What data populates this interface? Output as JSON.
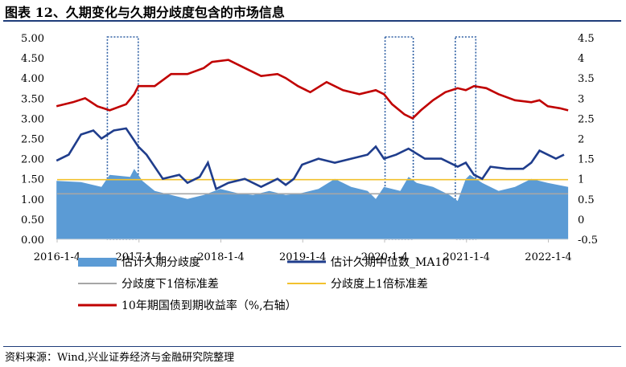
{
  "title": "图表 12、久期变化与久期分歧度包含的市场信息",
  "source": "资料来源：Wind,兴业证券经济与金融研究院整理",
  "colors": {
    "area": "#5b9bd5",
    "median": "#1f3d8c",
    "lower": "#a6a6a6",
    "upper": "#f2c12e",
    "yield": "#c00000",
    "highlight": "#2e5fa3"
  },
  "chart_data": {
    "type": "area+line",
    "x_range": [
      "2016-01-04",
      "2022-03-31"
    ],
    "x_ticks": [
      "2016-1-4",
      "2017-1-4",
      "2018-1-4",
      "2019-1-4",
      "2020-1-4",
      "2021-1-4",
      "2022-1-4"
    ],
    "y_left": {
      "min": 0,
      "max": 5,
      "ticks": [
        "0.00",
        "0.50",
        "1.00",
        "1.50",
        "2.00",
        "2.50",
        "3.00",
        "3.50",
        "4.00",
        "4.50",
        "5.00"
      ]
    },
    "y_right": {
      "min": -0.5,
      "max": 4.5,
      "ticks": [
        "-0.5",
        "0",
        "0.5",
        "1",
        "1.5",
        "2",
        "2.5",
        "3",
        "3.5",
        "4",
        "4.5"
      ]
    },
    "highlights": [
      {
        "from": "2016-08-15",
        "to": "2016-12-31"
      },
      {
        "from": "2020-01-06",
        "to": "2020-05-10"
      },
      {
        "from": "2020-11-15",
        "to": "2021-02-15"
      }
    ],
    "series": [
      {
        "name": "估计久期分歧度",
        "type": "area",
        "axis": "left",
        "points": [
          [
            2016.0,
            1.45
          ],
          [
            2016.3,
            1.42
          ],
          [
            2016.55,
            1.3
          ],
          [
            2016.65,
            1.6
          ],
          [
            2016.9,
            1.55
          ],
          [
            2016.95,
            1.75
          ],
          [
            2017.05,
            1.45
          ],
          [
            2017.2,
            1.2
          ],
          [
            2017.4,
            1.1
          ],
          [
            2017.6,
            1.0
          ],
          [
            2017.8,
            1.1
          ],
          [
            2018.0,
            1.25
          ],
          [
            2018.2,
            1.15
          ],
          [
            2018.4,
            1.1
          ],
          [
            2018.6,
            1.2
          ],
          [
            2018.8,
            1.1
          ],
          [
            2019.0,
            1.15
          ],
          [
            2019.2,
            1.25
          ],
          [
            2019.4,
            1.5
          ],
          [
            2019.6,
            1.3
          ],
          [
            2019.8,
            1.2
          ],
          [
            2019.9,
            1.0
          ],
          [
            2020.0,
            1.3
          ],
          [
            2020.2,
            1.2
          ],
          [
            2020.3,
            1.55
          ],
          [
            2020.4,
            1.4
          ],
          [
            2020.6,
            1.3
          ],
          [
            2020.8,
            1.1
          ],
          [
            2020.9,
            0.95
          ],
          [
            2021.0,
            1.5
          ],
          [
            2021.05,
            1.6
          ],
          [
            2021.2,
            1.4
          ],
          [
            2021.4,
            1.2
          ],
          [
            2021.6,
            1.3
          ],
          [
            2021.8,
            1.5
          ],
          [
            2022.0,
            1.4
          ],
          [
            2022.25,
            1.3
          ]
        ]
      },
      {
        "name": "估计久期中位数_MA10",
        "type": "line",
        "axis": "left",
        "points": [
          [
            2016.0,
            1.95
          ],
          [
            2016.15,
            2.1
          ],
          [
            2016.3,
            2.6
          ],
          [
            2016.45,
            2.7
          ],
          [
            2016.55,
            2.5
          ],
          [
            2016.7,
            2.7
          ],
          [
            2016.85,
            2.75
          ],
          [
            2017.0,
            2.3
          ],
          [
            2017.1,
            2.1
          ],
          [
            2017.3,
            1.5
          ],
          [
            2017.5,
            1.6
          ],
          [
            2017.6,
            1.4
          ],
          [
            2017.75,
            1.55
          ],
          [
            2017.85,
            1.9
          ],
          [
            2017.95,
            1.25
          ],
          [
            2018.1,
            1.4
          ],
          [
            2018.3,
            1.5
          ],
          [
            2018.5,
            1.3
          ],
          [
            2018.7,
            1.5
          ],
          [
            2018.8,
            1.35
          ],
          [
            2018.9,
            1.5
          ],
          [
            2019.0,
            1.85
          ],
          [
            2019.2,
            2.0
          ],
          [
            2019.4,
            1.9
          ],
          [
            2019.6,
            2.0
          ],
          [
            2019.8,
            2.1
          ],
          [
            2019.9,
            2.3
          ],
          [
            2020.0,
            2.0
          ],
          [
            2020.15,
            2.1
          ],
          [
            2020.3,
            2.25
          ],
          [
            2020.5,
            2.0
          ],
          [
            2020.7,
            2.0
          ],
          [
            2020.9,
            1.8
          ],
          [
            2021.0,
            1.9
          ],
          [
            2021.1,
            1.6
          ],
          [
            2021.2,
            1.5
          ],
          [
            2021.3,
            1.8
          ],
          [
            2021.5,
            1.75
          ],
          [
            2021.7,
            1.75
          ],
          [
            2021.8,
            1.9
          ],
          [
            2021.9,
            2.2
          ],
          [
            2022.0,
            2.1
          ],
          [
            2022.1,
            2.0
          ],
          [
            2022.2,
            2.1
          ]
        ]
      },
      {
        "name": "分歧度下1倍标准差",
        "type": "hline",
        "axis": "left",
        "value": 1.13
      },
      {
        "name": "分歧度上1倍标准差",
        "type": "hline",
        "axis": "left",
        "value": 1.48
      },
      {
        "name": "10年期国债到期收益率（%,右轴）",
        "type": "line",
        "axis": "right",
        "points": [
          [
            2016.0,
            2.8
          ],
          [
            2016.2,
            2.9
          ],
          [
            2016.35,
            3.0
          ],
          [
            2016.5,
            2.8
          ],
          [
            2016.65,
            2.7
          ],
          [
            2016.85,
            2.85
          ],
          [
            2016.95,
            3.1
          ],
          [
            2017.0,
            3.3
          ],
          [
            2017.2,
            3.3
          ],
          [
            2017.4,
            3.6
          ],
          [
            2017.6,
            3.6
          ],
          [
            2017.8,
            3.75
          ],
          [
            2017.9,
            3.9
          ],
          [
            2018.1,
            3.95
          ],
          [
            2018.3,
            3.75
          ],
          [
            2018.5,
            3.55
          ],
          [
            2018.7,
            3.6
          ],
          [
            2018.8,
            3.5
          ],
          [
            2018.95,
            3.3
          ],
          [
            2019.1,
            3.15
          ],
          [
            2019.3,
            3.4
          ],
          [
            2019.5,
            3.2
          ],
          [
            2019.7,
            3.1
          ],
          [
            2019.9,
            3.2
          ],
          [
            2020.0,
            3.1
          ],
          [
            2020.1,
            2.85
          ],
          [
            2020.25,
            2.6
          ],
          [
            2020.35,
            2.5
          ],
          [
            2020.45,
            2.7
          ],
          [
            2020.6,
            2.95
          ],
          [
            2020.75,
            3.15
          ],
          [
            2020.9,
            3.25
          ],
          [
            2021.0,
            3.2
          ],
          [
            2021.1,
            3.3
          ],
          [
            2021.25,
            3.25
          ],
          [
            2021.4,
            3.1
          ],
          [
            2021.6,
            2.95
          ],
          [
            2021.8,
            2.9
          ],
          [
            2021.9,
            2.95
          ],
          [
            2022.0,
            2.8
          ],
          [
            2022.15,
            2.75
          ],
          [
            2022.25,
            2.7
          ]
        ]
      }
    ]
  }
}
